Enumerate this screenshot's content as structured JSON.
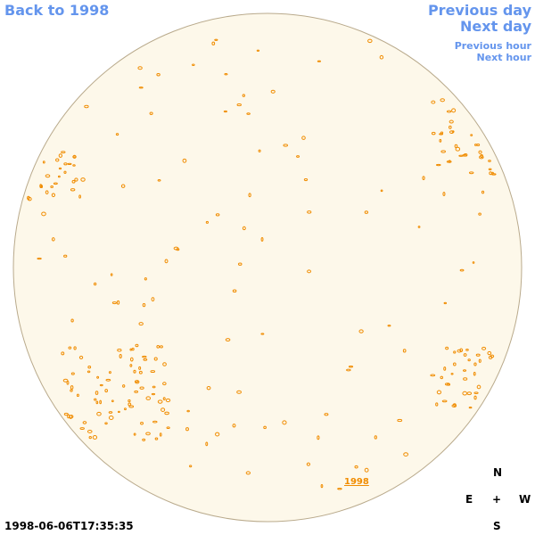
{
  "navigation": {
    "back": "Back to 1998",
    "previous_day": "Previous day",
    "next_day": "Next day",
    "previous_hour": "Previous hour",
    "next_hour": "Next hour"
  },
  "timestamp": "1998-06-06T17:35:35",
  "year_label": "1998",
  "compass": {
    "north": "N",
    "east": "E",
    "center": "+",
    "west": "W",
    "south": "S"
  }
}
